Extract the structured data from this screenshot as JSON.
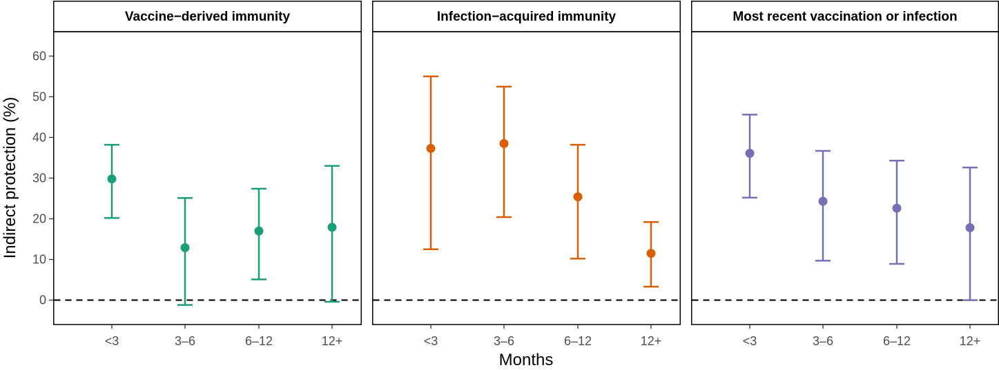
{
  "chart_data": {
    "type": "errorbar",
    "xlabel": "Months",
    "ylabel": "Indirect protection (%)",
    "categories": [
      "<3",
      "3–6",
      "6–12",
      "12+"
    ],
    "ylim": [
      -6,
      66
    ],
    "yticks": [
      0,
      10,
      20,
      30,
      40,
      50,
      60
    ],
    "reference_line": 0,
    "panels": [
      {
        "title": "Vaccine−derived immunity",
        "color": "#1b9e77",
        "estimates": [
          29.8,
          12.9,
          17.0,
          17.9
        ],
        "lower": [
          20.2,
          -1.2,
          5.1,
          -0.4
        ],
        "upper": [
          38.2,
          25.1,
          27.4,
          33.0
        ]
      },
      {
        "title": "Infection−acquired immunity",
        "color": "#d95f02",
        "estimates": [
          37.3,
          38.5,
          25.4,
          11.5
        ],
        "lower": [
          12.5,
          20.4,
          10.2,
          3.3
        ],
        "upper": [
          55.0,
          52.5,
          38.2,
          19.2
        ]
      },
      {
        "title": "Most recent vaccination or infection",
        "color": "#7570b3",
        "estimates": [
          36.1,
          24.3,
          22.6,
          17.8
        ],
        "lower": [
          25.2,
          9.7,
          8.9,
          0.0
        ],
        "upper": [
          45.6,
          36.7,
          34.3,
          32.6
        ]
      }
    ]
  }
}
